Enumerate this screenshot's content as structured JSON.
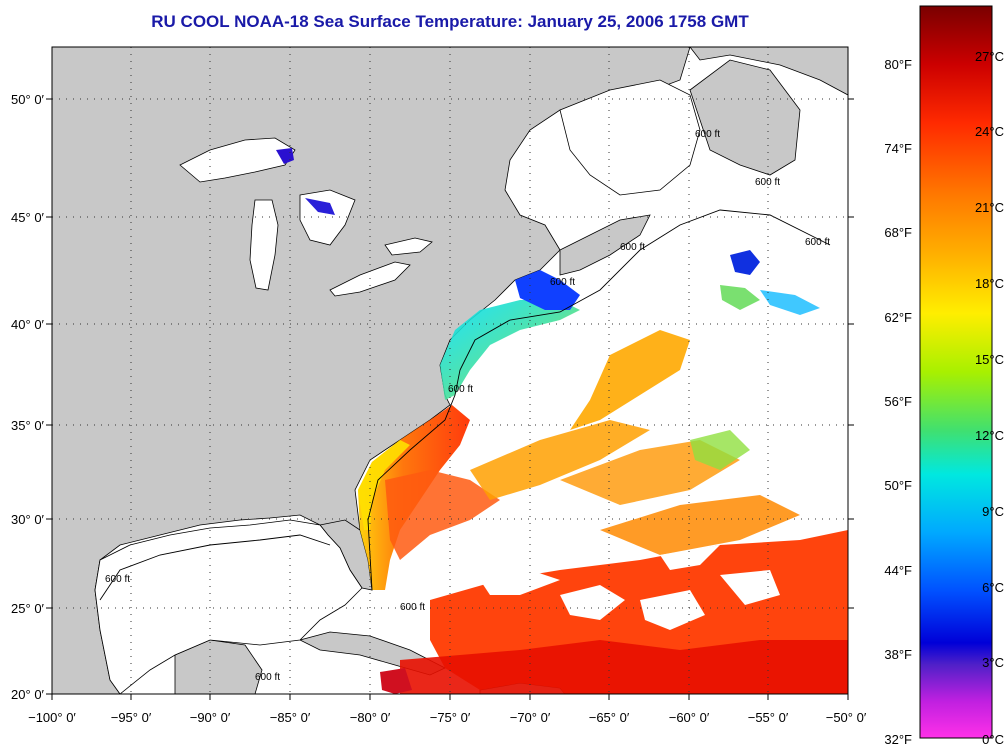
{
  "title": "RU COOL  NOAA-18  Sea Surface Temperature:  January 25, 2006 1758 GMT",
  "map": {
    "extent": {
      "lon": [
        -100,
        -50
      ],
      "lat": [
        20,
        52.5
      ]
    },
    "lon_ticks": [
      "−100° 0′",
      "−95° 0′",
      "−90° 0′",
      "−85° 0′",
      "−80° 0′",
      "−75° 0′",
      "−70° 0′",
      "−65° 0′",
      "−60° 0′",
      "−55° 0′",
      "−50° 0′"
    ],
    "lat_ticks": [
      "50° 0′",
      "45° 0′",
      "40° 0′",
      "35° 0′",
      "30° 0′",
      "25° 0′",
      "20° 0′"
    ],
    "isobath_labels": [
      "600 ft",
      "600 ft",
      "600 ft",
      "600 ft",
      "600 ft",
      "600 ft",
      "600 ft",
      "600 ft",
      "600 ft"
    ],
    "land_color": "#c8c8c8",
    "cloud_color": "#ffffff"
  },
  "colorbar": {
    "fahrenheit": [
      "80°F",
      "74°F",
      "68°F",
      "62°F",
      "56°F",
      "50°F",
      "44°F",
      "38°F",
      "32°F"
    ],
    "celsius": [
      "27°C",
      "24°C",
      "21°C",
      "18°C",
      "15°C",
      "12°C",
      "9°C",
      "6°C",
      "3°C",
      "0°C"
    ],
    "colors": [
      "#7a0000",
      "#cc0000",
      "#ff2a00",
      "#ff6a00",
      "#ffaa00",
      "#ffee00",
      "#b8f000",
      "#40e070",
      "#00e8e0",
      "#00a8ff",
      "#0050ff",
      "#0000d8",
      "#7020c0",
      "#ff20e0"
    ]
  }
}
